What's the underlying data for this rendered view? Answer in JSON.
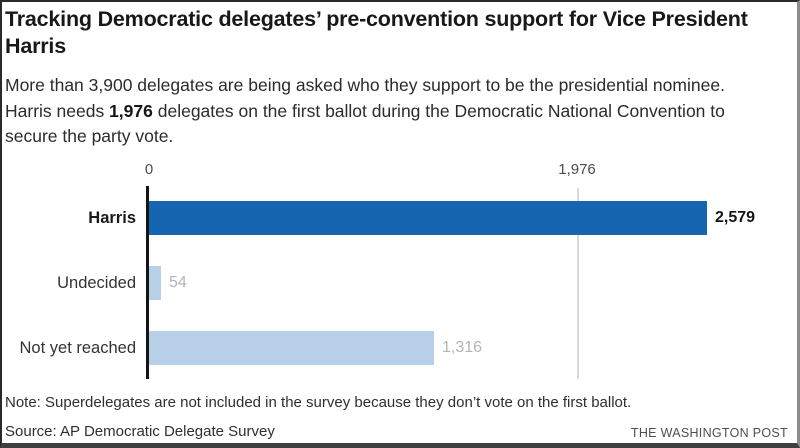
{
  "header": {
    "title": "Tracking Democratic delegates’ pre-convention support for Vice President Harris",
    "subtitle_prefix": "More than 3,900 delegates are being asked who they support to be the presidential nominee. Harris needs ",
    "subtitle_bold": "1,976",
    "subtitle_suffix": " delegates on the first ballot during the Democratic National Convention to secure the party vote."
  },
  "chart_data": {
    "type": "bar",
    "orientation": "horizontal",
    "title": "Tracking Democratic delegates’ pre-convention support for Vice President Harris",
    "xlabel": "",
    "ylabel": "",
    "categories": [
      "Harris",
      "Undecided",
      "Not yet reached"
    ],
    "values": [
      2579,
      54,
      1316
    ],
    "values_formatted": [
      "2,579",
      "54",
      "1,316"
    ],
    "xlim": [
      0,
      2579
    ],
    "ticks": [
      {
        "value": 0,
        "label": "0"
      },
      {
        "value": 1976,
        "label": "1,976"
      }
    ],
    "threshold_annotation": {
      "value": 1976,
      "meaning": "delegates needed on first ballot"
    },
    "grid": "single vertical reference line at 1,976",
    "legend": "none",
    "bar_colors": [
      "#1565b0",
      "#b8cfe8",
      "#b8cfe8"
    ],
    "colors": {
      "primary_bar": "#1565b0",
      "muted_bar": "#b8cfe8",
      "gridline": "#d9d9d9",
      "axis": "#141414",
      "muted_value_label": "#b4b4b4"
    }
  },
  "footer": {
    "note": "Note: Superdelegates are not included in the survey because they don’t vote on the first ballot.",
    "source": "Source: AP Democratic Delegate Survey",
    "credit": "THE WASHINGTON POST"
  }
}
